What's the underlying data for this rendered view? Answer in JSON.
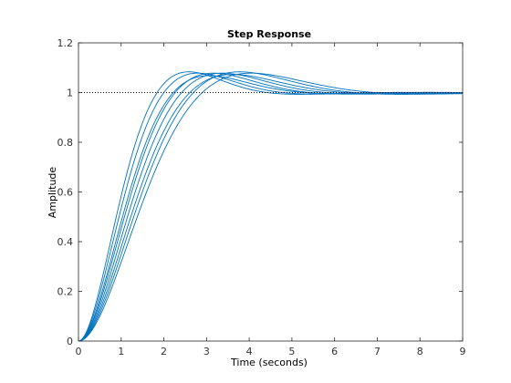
{
  "chart_data": {
    "type": "line",
    "title": "Step Response",
    "xlabel": "Time (seconds)",
    "ylabel": "Amplitude",
    "xlim": [
      0,
      9
    ],
    "ylim": [
      0,
      1.2
    ],
    "xticks": [
      "0",
      "1",
      "2",
      "3",
      "4",
      "5",
      "6",
      "7",
      "8",
      "9"
    ],
    "yticks": [
      "0",
      "0.2",
      "0.4",
      "0.6",
      "0.8",
      "1",
      "1.2"
    ],
    "grid": false,
    "reference": {
      "y": 1,
      "x_range": [
        0,
        9
      ],
      "style": "dotted"
    },
    "line_color": "#0072BD",
    "reference_color": "#000000",
    "series": [
      {
        "wn": 1.55,
        "zeta": 0.62,
        "t_end": 9
      },
      {
        "wn": 1.45,
        "zeta": 0.63,
        "t_end": 9
      },
      {
        "wn": 1.35,
        "zeta": 0.65,
        "t_end": 9
      },
      {
        "wn": 1.28,
        "zeta": 0.63,
        "t_end": 9
      },
      {
        "wn": 1.2,
        "zeta": 0.63,
        "t_end": 9
      },
      {
        "wn": 1.13,
        "zeta": 0.64,
        "t_end": 9
      },
      {
        "wn": 1.06,
        "zeta": 0.62,
        "t_end": 9
      },
      {
        "wn": 1.0,
        "zeta": 0.63,
        "t_end": 9
      }
    ]
  }
}
